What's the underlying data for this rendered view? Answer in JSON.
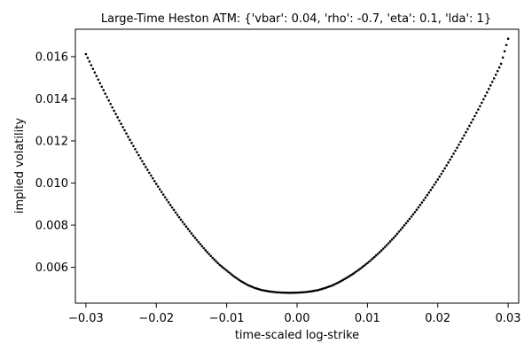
{
  "chart_data": {
    "type": "scatter",
    "title": "Large-Time Heston ATM: {'vbar': 0.04, 'rho': -0.7, 'eta': 0.1, 'lda': 1}",
    "xlabel": "time-scaled log-strike",
    "ylabel": "implied volatility",
    "xlim": [
      -0.0315,
      0.0315
    ],
    "ylim": [
      0.0043,
      0.0173
    ],
    "x_ticks": [
      -0.03,
      -0.02,
      -0.01,
      0.0,
      0.01,
      0.02,
      0.03
    ],
    "x_tick_labels": [
      "−0.03",
      "−0.02",
      "−0.01",
      "0.00",
      "0.01",
      "0.02",
      "0.03"
    ],
    "y_ticks": [
      0.006,
      0.008,
      0.01,
      0.012,
      0.014,
      0.016
    ],
    "y_tick_labels": [
      "0.006",
      "0.008",
      "0.010",
      "0.012",
      "0.014",
      "0.016"
    ],
    "grid": false,
    "marker_color": "#000000",
    "series": [
      {
        "x": [
          -0.03,
          -0.029,
          -0.028,
          -0.027,
          -0.026,
          -0.025,
          -0.024,
          -0.023,
          -0.022,
          -0.021,
          -0.02,
          -0.019,
          -0.018,
          -0.017,
          -0.016,
          -0.015,
          -0.014,
          -0.013,
          -0.012,
          -0.011,
          -0.01,
          -0.009,
          -0.008,
          -0.007,
          -0.006,
          -0.005,
          -0.004,
          -0.003,
          -0.002,
          -0.001,
          0.0,
          0.001,
          0.002,
          0.003,
          0.004,
          0.005,
          0.006,
          0.007,
          0.008,
          0.009,
          0.01,
          0.011,
          0.012,
          0.013,
          0.014,
          0.015,
          0.016,
          0.017,
          0.018,
          0.019,
          0.02,
          0.021,
          0.022,
          0.023,
          0.024,
          0.025,
          0.026,
          0.027,
          0.028,
          0.029,
          0.03
        ],
        "y": [
          0.01612,
          0.01542,
          0.01474,
          0.01408,
          0.01343,
          0.01281,
          0.0122,
          0.01161,
          0.01104,
          0.01049,
          0.00996,
          0.00945,
          0.00896,
          0.00849,
          0.00804,
          0.00761,
          0.0072,
          0.00681,
          0.00645,
          0.00612,
          0.00585,
          0.00558,
          0.00535,
          0.00516,
          0.00502,
          0.00492,
          0.00486,
          0.00482,
          0.0048,
          0.00479,
          0.0048,
          0.00482,
          0.00486,
          0.00492,
          0.00502,
          0.00514,
          0.0053,
          0.00549,
          0.0057,
          0.00594,
          0.0062,
          0.00649,
          0.0068,
          0.00714,
          0.0075,
          0.00789,
          0.0083,
          0.00873,
          0.00919,
          0.00967,
          0.01017,
          0.0107,
          0.01125,
          0.01182,
          0.01241,
          0.01302,
          0.01365,
          0.0143,
          0.01497,
          0.01566,
          0.01685
        ]
      }
    ]
  }
}
